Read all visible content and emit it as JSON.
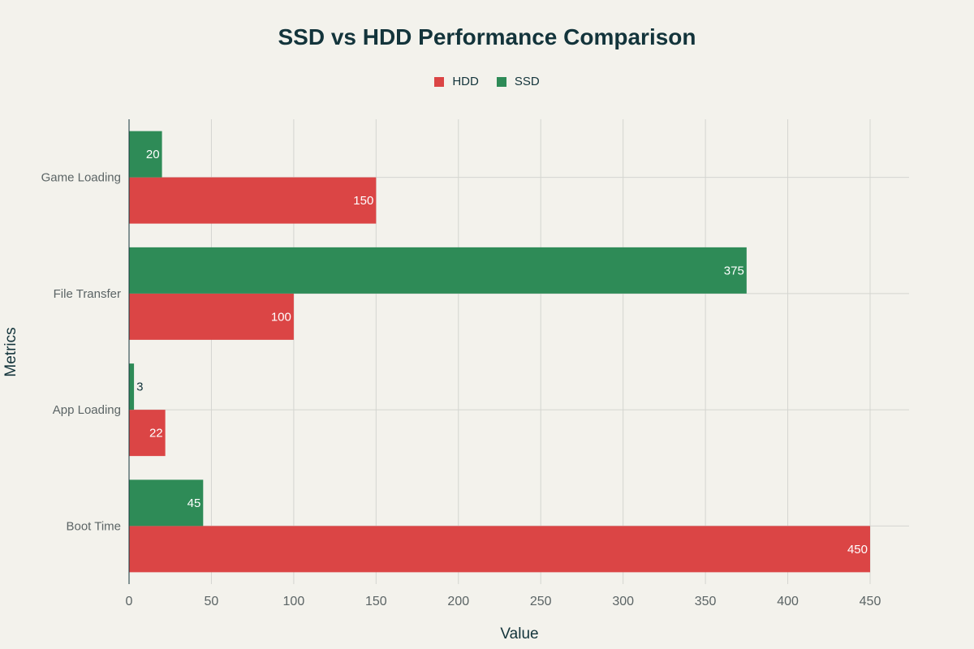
{
  "chart_data": {
    "type": "bar",
    "orientation": "horizontal",
    "title": "SSD vs HDD Performance Comparison",
    "xlabel": "Value",
    "ylabel": "Metrics",
    "categories": [
      "Boot Time",
      "App Loading",
      "File Transfer",
      "Game Loading"
    ],
    "series": [
      {
        "name": "HDD",
        "color": "#db4545",
        "values": [
          450,
          22,
          100,
          150
        ]
      },
      {
        "name": "SSD",
        "color": "#2e8b57",
        "values": [
          45,
          3,
          375,
          20
        ]
      }
    ],
    "xlim": [
      0,
      475
    ],
    "xticks": [
      0,
      50,
      100,
      150,
      200,
      250,
      300,
      350,
      400,
      450
    ],
    "grid": true,
    "legend_position": "top-center"
  }
}
